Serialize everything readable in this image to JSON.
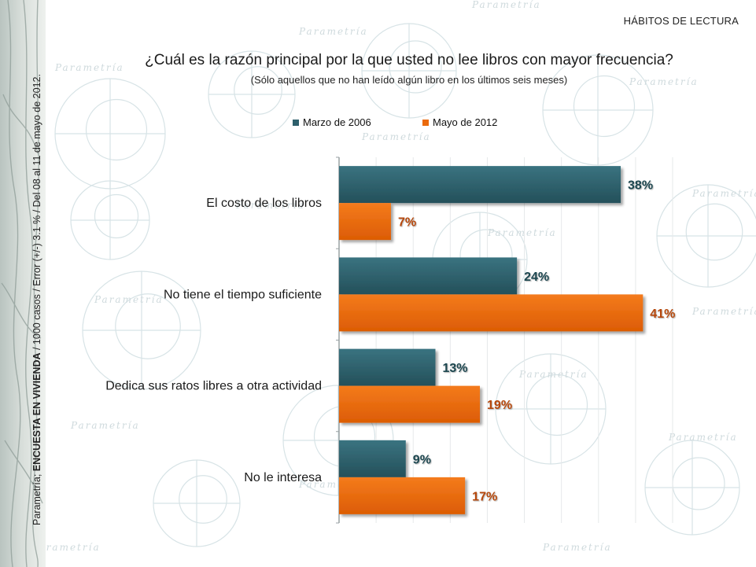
{
  "header": {
    "section": "HÁBITOS DE LECTURA",
    "question": "¿Cuál es la razón principal por la que usted no lee libros con mayor frecuencia?",
    "subquestion": "(Sólo aquellos que no han leído algún libro en los últimos seis meses)"
  },
  "side_note": {
    "prefix": "Parametría; ",
    "bold": "ENCUESTA EN VIVIENDA",
    "suffix": " / 1000 casos / Error (+/-) 3.1 % / Del 08 al 11 de mayo de 2012."
  },
  "watermark": {
    "brand": "Parametría"
  },
  "colors": {
    "series1": "#2d5f6b",
    "series2": "#ea6a0c"
  },
  "chart_data": {
    "type": "bar",
    "orientation": "horizontal",
    "categories": [
      "El costo de los libros",
      "No tiene el tiempo suficiente",
      "Dedica sus ratos libres a otra actividad",
      "No le interesa"
    ],
    "series": [
      {
        "name": "Marzo de 2006",
        "values": [
          38,
          24,
          13,
          9
        ],
        "labels": [
          "38%",
          "24%",
          "13%",
          "9%"
        ]
      },
      {
        "name": "Mayo de 2012",
        "values": [
          7,
          41,
          19,
          17
        ],
        "labels": [
          "7%",
          "41%",
          "19%",
          "17%"
        ]
      }
    ],
    "xlim": [
      0,
      45
    ],
    "grid": true,
    "legend_position": "top"
  }
}
